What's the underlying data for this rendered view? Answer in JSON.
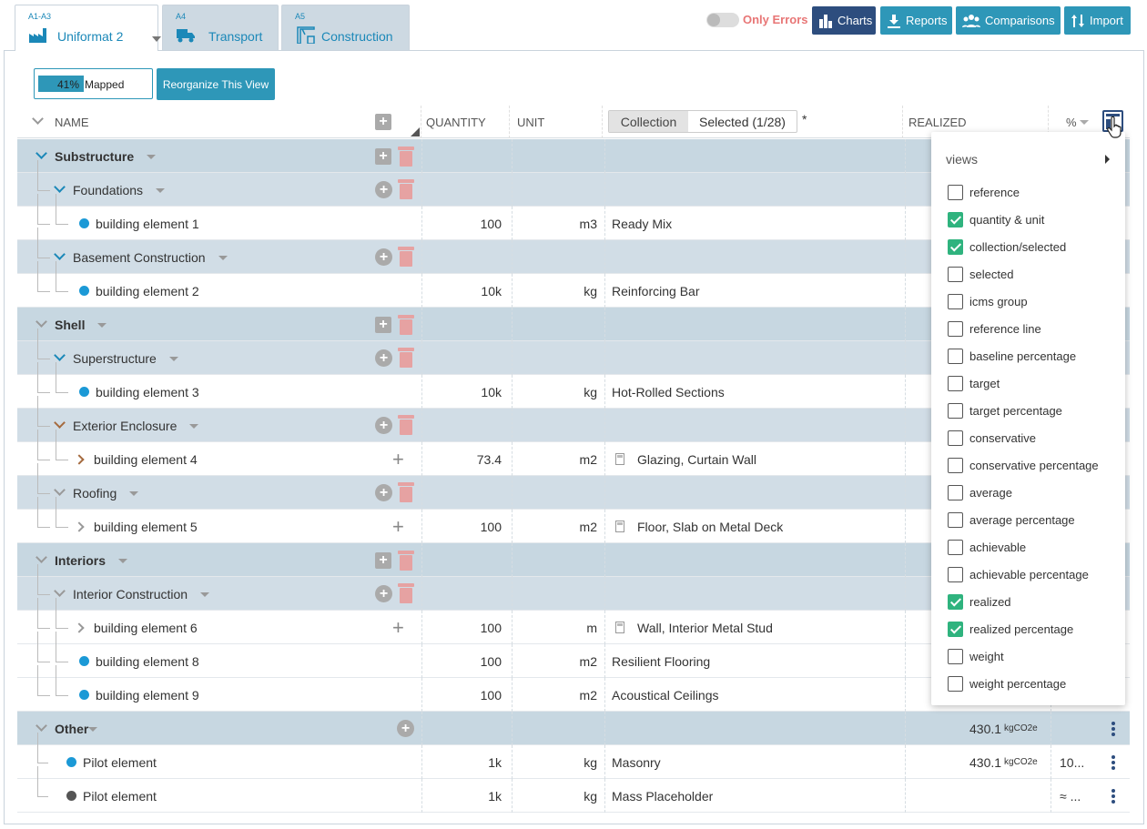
{
  "tabs": [
    {
      "code": "A1-A3",
      "label": "Uniformat 2",
      "icon": "factory-icon",
      "active": true
    },
    {
      "code": "A4",
      "label": "Transport",
      "icon": "truck-icon",
      "active": false
    },
    {
      "code": "A5",
      "label": "Construction",
      "icon": "crane-icon",
      "active": false
    }
  ],
  "toolbar": {
    "only_errors": "Only Errors",
    "charts": "Charts",
    "reports": "Reports",
    "comparisons": "Comparisons",
    "import": "Import"
  },
  "mapped": {
    "percent": "41%",
    "label": "Mapped",
    "fraction": 0.41
  },
  "reorganize": "Reorganize This View",
  "header": {
    "name": "NAME",
    "quantity": "QUANTITY",
    "unit": "UNIT",
    "seg_collection": "Collection",
    "seg_selected": "Selected (1/28)",
    "asterisk": "*",
    "realized": "REALIZED",
    "percent": "%"
  },
  "rows": [
    {
      "name": "Substructure"
    },
    {
      "name": "Foundations"
    },
    {
      "name": "building element 1",
      "qty": "100",
      "unit": "m3",
      "coll": "Ready Mix"
    },
    {
      "name": "Basement Construction"
    },
    {
      "name": "building element 2",
      "qty": "10k",
      "unit": "kg",
      "coll": "Reinforcing Bar"
    },
    {
      "name": "Shell"
    },
    {
      "name": "Superstructure"
    },
    {
      "name": "building element 3",
      "qty": "10k",
      "unit": "kg",
      "coll": "Hot-Rolled Sections"
    },
    {
      "name": "Exterior Enclosure"
    },
    {
      "name": "building element 4",
      "qty": "73.4",
      "unit": "m2",
      "coll": "Glazing, Curtain Wall"
    },
    {
      "name": "Roofing"
    },
    {
      "name": "building element 5",
      "qty": "100",
      "unit": "m2",
      "coll": "Floor, Slab on Metal Deck"
    },
    {
      "name": "Interiors"
    },
    {
      "name": "Interior Construction"
    },
    {
      "name": "building element 6",
      "qty": "100",
      "unit": "m",
      "coll": "Wall, Interior Metal Stud"
    },
    {
      "name": "building element 8",
      "qty": "100",
      "unit": "m2",
      "coll": "Resilient Flooring"
    },
    {
      "name": "building element 9",
      "qty": "100",
      "unit": "m2",
      "coll": "Acoustical Ceilings"
    },
    {
      "name": "Other",
      "realized": "430.1",
      "realized_unit": "kgCO2e"
    },
    {
      "name": "Pilot element",
      "qty": "1k",
      "unit": "kg",
      "coll": "Masonry",
      "realized": "430.1",
      "realized_unit": "kgCO2e",
      "pct": "10..."
    },
    {
      "name": "Pilot element",
      "qty": "1k",
      "unit": "kg",
      "coll": "Mass Placeholder",
      "pct": "≈ ..."
    }
  ],
  "views_menu": {
    "title": "views",
    "items": [
      {
        "label": "reference",
        "checked": false
      },
      {
        "label": "quantity & unit",
        "checked": true
      },
      {
        "label": "collection/selected",
        "checked": true
      },
      {
        "label": "selected",
        "checked": false
      },
      {
        "label": "icms group",
        "checked": false
      },
      {
        "label": "reference line",
        "checked": false
      },
      {
        "label": "baseline percentage",
        "checked": false
      },
      {
        "label": "target",
        "checked": false
      },
      {
        "label": "target percentage",
        "checked": false
      },
      {
        "label": "conservative",
        "checked": false
      },
      {
        "label": "conservative percentage",
        "checked": false
      },
      {
        "label": "average",
        "checked": false
      },
      {
        "label": "average percentage",
        "checked": false
      },
      {
        "label": "achievable",
        "checked": false
      },
      {
        "label": "achievable percentage",
        "checked": false
      },
      {
        "label": "realized",
        "checked": true
      },
      {
        "label": "realized percentage",
        "checked": true
      },
      {
        "label": "weight",
        "checked": false
      },
      {
        "label": "weight percentage",
        "checked": false
      }
    ]
  },
  "colors": {
    "accent": "#2e97b8",
    "navy": "#2d4d7e",
    "check": "#2fb37e",
    "error": "#e87676"
  }
}
